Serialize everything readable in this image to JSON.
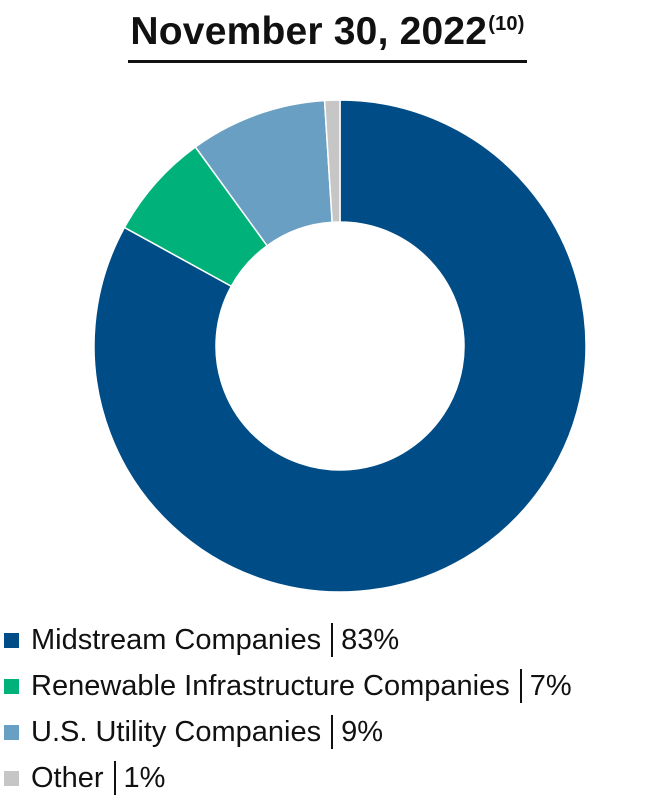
{
  "chart_data": {
    "type": "pie",
    "title": "November 30, 2022",
    "title_footnote": "(10)",
    "categories": [
      "Midstream Companies",
      "Renewable Infrastructure Companies",
      "U.S. Utility Companies",
      "Other"
    ],
    "values": [
      83,
      7,
      9,
      1
    ],
    "value_labels": [
      "83%",
      "7%",
      "9%",
      "1%"
    ],
    "colors": [
      "#004c87",
      "#00b27a",
      "#6a9fc4",
      "#c6c6c6"
    ],
    "legend": "bottom-left",
    "donut": true
  }
}
